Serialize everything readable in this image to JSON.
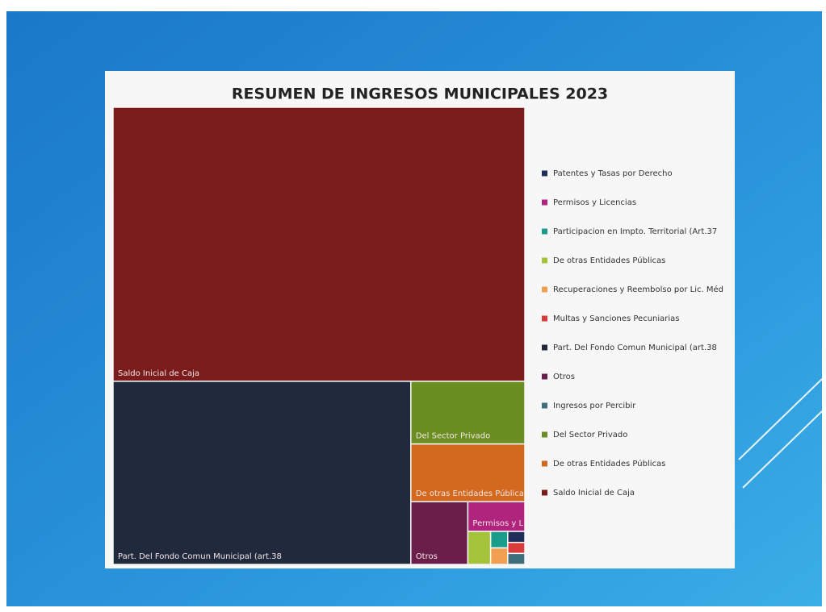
{
  "chart_data": {
    "type": "treemap",
    "title": "RESUMEN DE INGRESOS MUNICIPALES 2023",
    "categories": [
      "Patentes y Tasas por Derecho",
      "Permisos y Licencias",
      "Participacion en Impto. Territorial (Art.37",
      "De otras Entidades Públicas",
      "Recuperaciones y Reembolso por Lic. Méd",
      "Multas y Sanciones Pecuniarias",
      "Part. Del Fondo Comun Municipal (art.38",
      "Otros",
      "Ingresos por Percibir",
      "Del Sector Privado",
      "De otras Entidades Públicas",
      "Saldo Inicial de Caja"
    ],
    "values": [
      0.1,
      0.9,
      0.15,
      0.4,
      0.15,
      0.1,
      29,
      1.9,
      0.1,
      3.8,
      3.5,
      60
    ],
    "colors": [
      "#1f2f5a",
      "#b0247e",
      "#1a9c8c",
      "#a4c23a",
      "#f0a050",
      "#d93a3a",
      "#202a3c",
      "#6a1f4a",
      "#3f6f7a",
      "#6b8e23",
      "#d2691e",
      "#7b1c1c"
    ],
    "legend": "right"
  }
}
